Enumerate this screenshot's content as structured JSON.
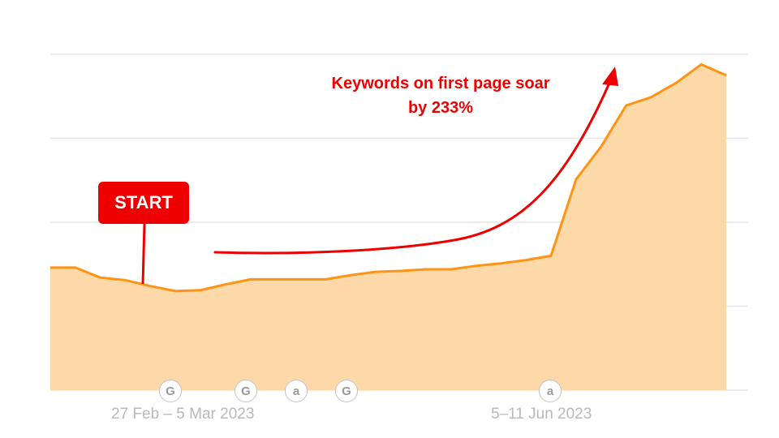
{
  "chart_data": {
    "type": "area",
    "x": [
      1,
      2,
      3,
      4,
      5,
      6,
      7,
      8,
      9,
      10,
      11,
      12,
      13,
      14,
      15,
      16,
      17,
      18,
      19,
      20,
      21,
      22,
      23,
      24,
      25,
      26,
      27,
      28
    ],
    "series": [
      {
        "values": [
          146,
          146,
          134,
          131,
          124,
          118,
          119,
          126,
          132,
          132,
          132,
          132,
          137,
          141,
          142,
          144,
          144,
          148,
          151,
          155,
          160,
          251,
          290,
          339,
          349,
          366,
          388,
          375
        ]
      }
    ],
    "ylim": [
      0,
      400
    ],
    "yticks": [
      0,
      100,
      200,
      300,
      400
    ],
    "grid": true,
    "x_tick_labels": [
      "27 Feb – 5 Mar 2023",
      "5–11 Jun 2023"
    ],
    "event_markers": [
      "G",
      "G",
      "a",
      "G",
      "a"
    ],
    "annotations": {
      "start_label": "START",
      "headline": "Keywords on first page soar by 233%"
    },
    "colors": {
      "area": "#fdd9a9",
      "line": "#ff9414",
      "annotation": "#ee0000",
      "grid": "#e6e6e6"
    }
  }
}
